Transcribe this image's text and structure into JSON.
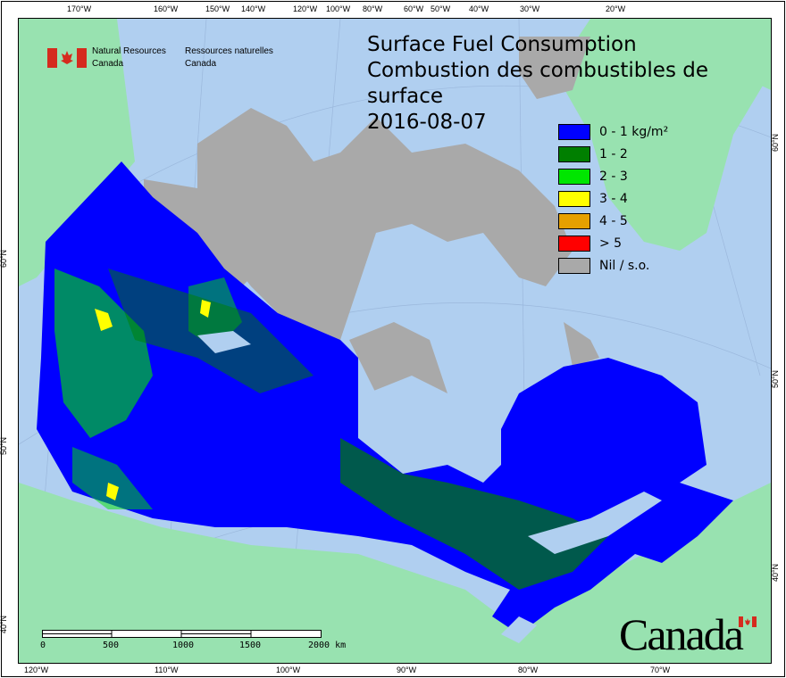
{
  "header": {
    "dept_en": [
      "Natural Resources",
      "Canada"
    ],
    "dept_fr": [
      "Ressources naturelles",
      "Canada"
    ]
  },
  "title": {
    "en": "Surface Fuel Consumption",
    "fr": "Combustion des combustibles de surface",
    "date": "2016-08-07"
  },
  "legend": [
    {
      "label": "0 - 1 kg/m²",
      "color": "#0000ff"
    },
    {
      "label": "1 - 2",
      "color": "#007f00"
    },
    {
      "label": "2 - 3",
      "color": "#00e600"
    },
    {
      "label": "3 - 4",
      "color": "#ffff00"
    },
    {
      "label": "4 - 5",
      "color": "#e6a000"
    },
    {
      "label": "> 5",
      "color": "#ff0000"
    },
    {
      "label": "Nil / s.o.",
      "color": "#a9a9a9"
    }
  ],
  "ticks": {
    "top": [
      "170°W",
      "160°W",
      "150°W",
      "140°W",
      "120°W",
      "100°W",
      "80°W",
      "60°W",
      "50°W",
      "40°W",
      "30°W",
      "20°W"
    ],
    "bottom": [
      "120°W",
      "110°W",
      "100°W",
      "90°W",
      "80°W",
      "70°W"
    ],
    "left": [
      "60°N",
      "50°N",
      "40°N"
    ],
    "right": [
      "60°N",
      "50°N",
      "40°N"
    ]
  },
  "scale_bar": {
    "labels": [
      "0",
      "500",
      "1000",
      "1500",
      "2000  km"
    ]
  },
  "wordmark": "Canada",
  "colors": {
    "ocean": "#b0cff0",
    "foreign_land": "#98e2b0",
    "nil": "#a9a9a9",
    "flag_red": "#d52b1e"
  }
}
